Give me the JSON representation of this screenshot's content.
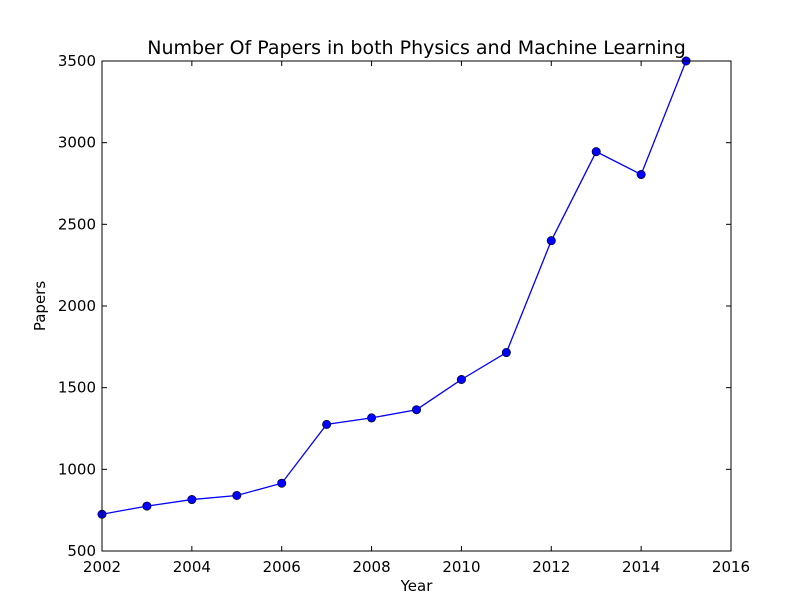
{
  "chart_data": {
    "type": "line",
    "title": "Number Of Papers in both Physics and Machine Learning",
    "xlabel": "Year",
    "ylabel": "Papers",
    "xlim": [
      2002,
      2016
    ],
    "ylim": [
      500,
      3500
    ],
    "xticks": [
      2002,
      2004,
      2006,
      2008,
      2010,
      2012,
      2014,
      2016
    ],
    "yticks": [
      500,
      1000,
      1500,
      2000,
      2500,
      3000,
      3500
    ],
    "grid": false,
    "series": [
      {
        "color": "#0000ff",
        "marker": "circle",
        "x": [
          2002,
          2003,
          2004,
          2005,
          2006,
          2007,
          2008,
          2009,
          2010,
          2011,
          2012,
          2013,
          2014,
          2015
        ],
        "y": [
          725,
          775,
          815,
          840,
          915,
          1275,
          1315,
          1365,
          1550,
          1715,
          2400,
          2945,
          2805,
          3500
        ]
      }
    ]
  }
}
